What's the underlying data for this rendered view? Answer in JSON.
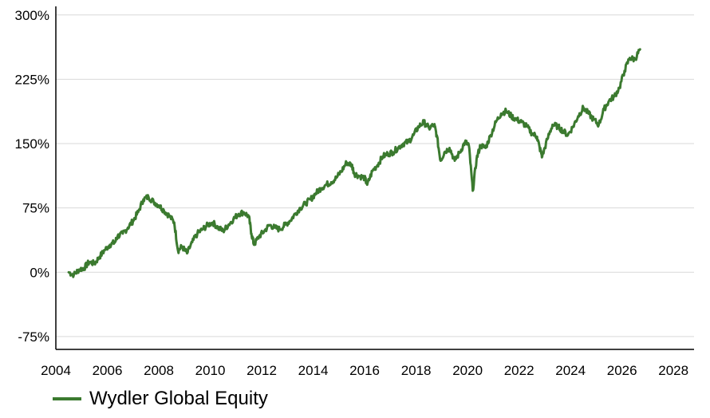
{
  "colors": {
    "line": "#3b7a2f",
    "grid": "#d9d9d9",
    "axis": "#000000"
  },
  "chart_data": {
    "type": "line",
    "title": "",
    "xlabel": "",
    "ylabel": "",
    "x_ticks": [
      "2004",
      "2006",
      "2008",
      "2010",
      "2012",
      "2014",
      "2016",
      "2018",
      "2020",
      "2022",
      "2024",
      "2026",
      "2028"
    ],
    "y_ticks": [
      "300%",
      "225%",
      "150%",
      "75%",
      "0%",
      "-75%"
    ],
    "xlim": [
      2004,
      2028.8
    ],
    "ylim": [
      -90,
      310
    ],
    "grid": "horizontal",
    "legend_position": "bottom-left",
    "series": [
      {
        "name": "Wydler Global Equity",
        "x": [
          2004.5,
          2004.7,
          2004.9,
          2005.1,
          2005.3,
          2005.5,
          2005.7,
          2005.9,
          2006.1,
          2006.3,
          2006.4,
          2006.6,
          2006.8,
          2007.0,
          2007.2,
          2007.4,
          2007.6,
          2007.8,
          2008.0,
          2008.2,
          2008.4,
          2008.6,
          2008.75,
          2008.9,
          2009.1,
          2009.3,
          2009.5,
          2009.7,
          2009.9,
          2010.1,
          2010.3,
          2010.5,
          2010.7,
          2010.9,
          2011.1,
          2011.3,
          2011.5,
          2011.6,
          2011.7,
          2011.9,
          2012.1,
          2012.3,
          2012.5,
          2012.7,
          2012.9,
          2013.1,
          2013.3,
          2013.5,
          2013.7,
          2013.9,
          2014.1,
          2014.3,
          2014.5,
          2014.7,
          2014.9,
          2015.1,
          2015.3,
          2015.5,
          2015.6,
          2015.8,
          2016.0,
          2016.1,
          2016.3,
          2016.5,
          2016.7,
          2016.9,
          2017.1,
          2017.3,
          2017.5,
          2017.7,
          2017.9,
          2018.1,
          2018.3,
          2018.5,
          2018.7,
          2018.8,
          2018.95,
          2019.1,
          2019.3,
          2019.5,
          2019.7,
          2019.9,
          2020.05,
          2020.2,
          2020.35,
          2020.5,
          2020.7,
          2020.9,
          2021.1,
          2021.3,
          2021.5,
          2021.7,
          2021.9,
          2022.1,
          2022.3,
          2022.5,
          2022.7,
          2022.8,
          2022.9,
          2023.1,
          2023.3,
          2023.5,
          2023.7,
          2023.9,
          2024.1,
          2024.3,
          2024.5,
          2024.7,
          2024.9,
          2025.1,
          2025.3,
          2025.5,
          2025.7,
          2025.9,
          2026.1,
          2026.3,
          2026.5,
          2026.7
        ],
        "y": [
          0,
          -3,
          3,
          5,
          12,
          10,
          18,
          26,
          32,
          35,
          42,
          45,
          52,
          60,
          70,
          85,
          88,
          82,
          78,
          72,
          66,
          58,
          25,
          30,
          22,
          35,
          45,
          50,
          55,
          58,
          52,
          48,
          55,
          62,
          68,
          70,
          65,
          45,
          32,
          42,
          48,
          55,
          52,
          50,
          55,
          60,
          68,
          75,
          80,
          85,
          92,
          98,
          102,
          105,
          110,
          118,
          128,
          125,
          115,
          112,
          110,
          102,
          118,
          125,
          135,
          138,
          140,
          145,
          150,
          152,
          160,
          170,
          175,
          168,
          172,
          160,
          130,
          140,
          145,
          130,
          140,
          152,
          148,
          95,
          132,
          148,
          145,
          160,
          175,
          185,
          188,
          182,
          178,
          175,
          170,
          162,
          158,
          145,
          135,
          155,
          172,
          170,
          165,
          160,
          170,
          182,
          192,
          185,
          178,
          172,
          190,
          200,
          205,
          215,
          235,
          250,
          248,
          260
        ]
      }
    ]
  }
}
